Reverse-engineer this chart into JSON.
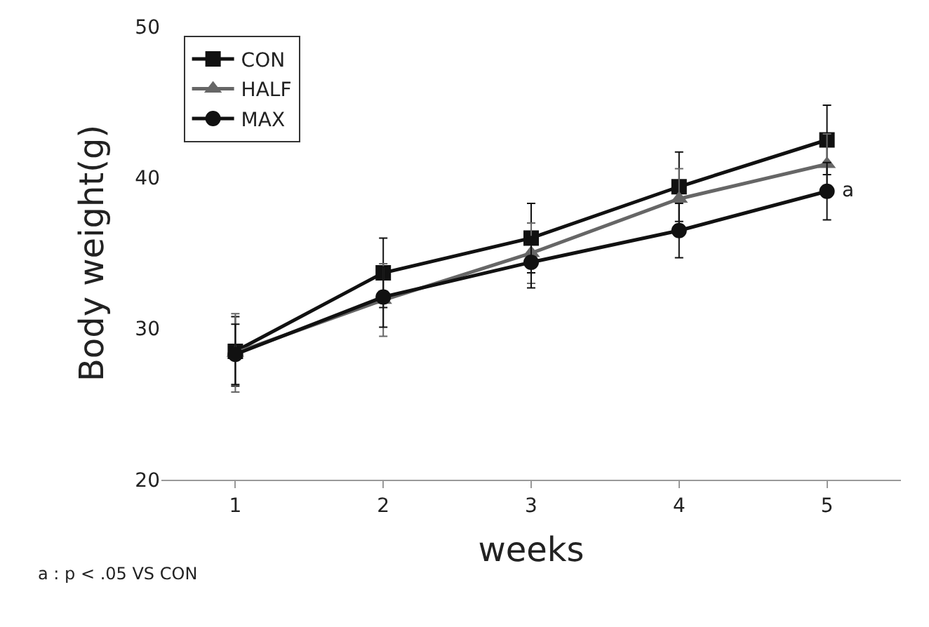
{
  "chart_data": {
    "type": "line",
    "xlabel": "weeks",
    "ylabel": "Body weight(g)",
    "categories": [
      "1",
      "2",
      "3",
      "4",
      "5"
    ],
    "series": [
      {
        "name": "CON",
        "color": "#111111",
        "marker": "square",
        "values": [
          28.5,
          33.7,
          36.0,
          39.4,
          42.5
        ],
        "errors": [
          2.3,
          2.3,
          2.3,
          2.3,
          2.3
        ]
      },
      {
        "name": "HALF",
        "color": "#666666",
        "marker": "triangle",
        "values": [
          28.4,
          31.9,
          35.0,
          38.6,
          40.9
        ],
        "errors": [
          2.6,
          2.4,
          2.0,
          2.0,
          2.0
        ]
      },
      {
        "name": "MAX",
        "color": "#111111",
        "marker": "circle",
        "values": [
          28.3,
          32.1,
          34.4,
          36.5,
          39.1
        ],
        "errors": [
          2.0,
          2.0,
          1.7,
          1.8,
          1.9
        ]
      }
    ],
    "ylim": [
      20,
      50
    ],
    "yticks": [
      20,
      30,
      40,
      50
    ],
    "legend": "top left",
    "annotations": [
      {
        "text": "a",
        "x": "5",
        "y": 39.1
      },
      "a : p < .05 VS CON"
    ]
  }
}
